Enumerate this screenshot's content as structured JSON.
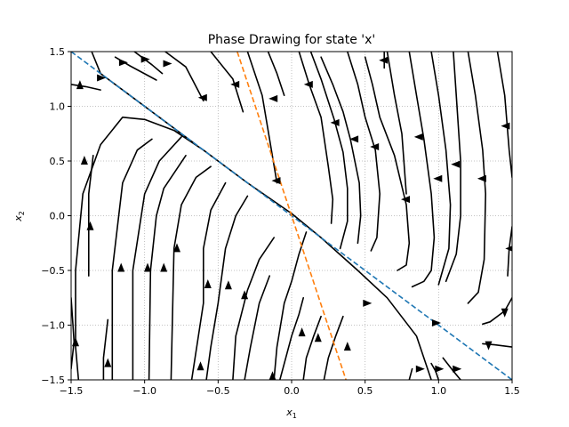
{
  "chart_data": {
    "type": "line",
    "title": "Phase Drawing for state 'x'",
    "xlabel": {
      "base": "x",
      "sub": "1"
    },
    "ylabel": {
      "base": "x",
      "sub": "2"
    },
    "xlim": [
      -1.5,
      1.5
    ],
    "ylim": [
      -1.5,
      1.5
    ],
    "grid": true,
    "xticks": [
      -1.5,
      -1.0,
      -0.5,
      0.0,
      0.5,
      1.0,
      1.5
    ],
    "yticks": [
      -1.5,
      -1.0,
      -0.5,
      0.0,
      0.5,
      1.0,
      1.5
    ],
    "xtick_labels": [
      "−1.5",
      "−1.0",
      "−0.5",
      "0.0",
      "0.5",
      "1.0",
      "1.5"
    ],
    "ytick_labels": [
      "−1.5",
      "−1.0",
      "−0.5",
      "0.0",
      "0.5",
      "1.0",
      "1.5"
    ],
    "colors": {
      "streamline": "#000000",
      "eigenline_1": "#1f77b4",
      "eigenline_2": "#ff7f0e",
      "grid": "#b0b0b0"
    },
    "eigenlines": [
      {
        "color": "#1f77b4",
        "style": "dashed",
        "points": [
          [
            -1.5,
            1.5
          ],
          [
            1.5,
            -1.5
          ]
        ]
      },
      {
        "color": "#ff7f0e",
        "style": "dashed",
        "points": [
          [
            -0.37,
            1.5
          ],
          [
            0.37,
            -1.5
          ]
        ]
      }
    ],
    "streamlines": [
      [
        [
          -1.5,
          1.2
        ],
        [
          -1.4,
          1.18
        ],
        [
          -1.3,
          1.15
        ]
      ],
      [
        [
          -1.36,
          1.5
        ],
        [
          -1.3,
          1.3
        ],
        [
          -1.1,
          1.1
        ],
        [
          -0.9,
          0.9
        ],
        [
          -0.65,
          0.65
        ]
      ],
      [
        [
          -1.2,
          1.45
        ],
        [
          -1.1,
          1.37
        ],
        [
          -0.92,
          1.24
        ]
      ],
      [
        [
          -1.07,
          1.5
        ],
        [
          -0.95,
          1.38
        ],
        [
          -0.88,
          1.3
        ]
      ],
      [
        [
          -0.86,
          1.5
        ],
        [
          -0.72,
          1.36
        ],
        [
          -0.6,
          1.05
        ]
      ],
      [
        [
          -0.55,
          1.5
        ],
        [
          -0.4,
          1.25
        ],
        [
          -0.33,
          0.95
        ]
      ],
      [
        [
          -0.3,
          1.5
        ],
        [
          -0.2,
          1.1
        ],
        [
          -0.15,
          0.7
        ],
        [
          -0.1,
          0.3
        ]
      ],
      [
        [
          -0.16,
          1.5
        ],
        [
          -0.1,
          1.3
        ],
        [
          -0.05,
          1.1
        ]
      ],
      [
        [
          0.05,
          1.5
        ],
        [
          0.12,
          1.2
        ],
        [
          0.2,
          0.9
        ],
        [
          0.25,
          0.45
        ],
        [
          0.28,
          0.15
        ],
        [
          0.27,
          -0.07
        ]
      ],
      [
        [
          0.13,
          1.5
        ],
        [
          0.2,
          1.25
        ],
        [
          0.29,
          0.88
        ],
        [
          0.35,
          0.58
        ],
        [
          0.38,
          0.25
        ],
        [
          0.38,
          -0.05
        ],
        [
          0.33,
          -0.3
        ]
      ],
      [
        [
          0.2,
          1.45
        ],
        [
          0.28,
          1.2
        ],
        [
          0.35,
          0.95
        ],
        [
          0.4,
          0.7
        ],
        [
          0.46,
          0.3
        ],
        [
          0.47,
          0.0
        ],
        [
          0.45,
          -0.25
        ]
      ],
      [
        [
          0.38,
          1.5
        ],
        [
          0.45,
          1.2
        ],
        [
          0.5,
          0.9
        ],
        [
          0.57,
          0.6
        ],
        [
          0.6,
          0.2
        ],
        [
          0.58,
          -0.2
        ],
        [
          0.54,
          -0.32
        ]
      ],
      [
        [
          0.63,
          1.5
        ],
        [
          0.63,
          1.35
        ]
      ],
      [
        [
          0.5,
          1.45
        ],
        [
          0.55,
          1.2
        ],
        [
          0.6,
          0.9
        ],
        [
          0.7,
          0.55
        ],
        [
          0.78,
          0.1
        ],
        [
          0.8,
          -0.25
        ],
        [
          0.78,
          -0.45
        ],
        [
          0.72,
          -0.5
        ]
      ],
      [
        [
          0.65,
          1.5
        ],
        [
          0.7,
          1.1
        ],
        [
          0.75,
          0.75
        ],
        [
          0.78,
          0.2
        ]
      ],
      [
        [
          0.8,
          1.5
        ],
        [
          0.85,
          1.1
        ],
        [
          0.9,
          0.7
        ],
        [
          0.95,
          0.2
        ],
        [
          0.97,
          -0.2
        ],
        [
          0.95,
          -0.5
        ],
        [
          0.9,
          -0.6
        ],
        [
          0.82,
          -0.65
        ]
      ],
      [
        [
          0.95,
          1.5
        ],
        [
          1.0,
          1.1
        ],
        [
          1.05,
          0.6
        ],
        [
          1.08,
          0.1
        ],
        [
          1.07,
          -0.3
        ],
        [
          1.0,
          -0.63
        ]
      ],
      [
        [
          1.1,
          1.5
        ],
        [
          1.12,
          1.1
        ],
        [
          1.15,
          0.5
        ],
        [
          1.15,
          0.0
        ],
        [
          1.12,
          -0.35
        ],
        [
          1.05,
          -0.6
        ]
      ],
      [
        [
          1.2,
          1.5
        ],
        [
          1.25,
          1.1
        ],
        [
          1.3,
          0.6
        ],
        [
          1.32,
          0.2
        ],
        [
          1.31,
          -0.4
        ],
        [
          1.27,
          -0.7
        ],
        [
          1.2,
          -0.8
        ]
      ],
      [
        [
          1.4,
          1.5
        ],
        [
          1.45,
          1.1
        ],
        [
          1.48,
          0.6
        ],
        [
          1.5,
          0.35
        ]
      ],
      [
        [
          1.5,
          -0.1
        ],
        [
          1.48,
          -0.3
        ],
        [
          1.47,
          -0.55
        ]
      ],
      [
        [
          1.5,
          -0.75
        ],
        [
          1.45,
          -0.87
        ],
        [
          1.35,
          -0.97
        ],
        [
          1.3,
          -0.99
        ]
      ],
      [
        [
          1.5,
          -1.2
        ],
        [
          1.38,
          -1.18
        ],
        [
          1.3,
          -1.17
        ]
      ],
      [
        [
          -1.45,
          -1.5
        ],
        [
          -1.47,
          -1.2
        ],
        [
          -1.47,
          -0.5
        ],
        [
          -1.42,
          0.2
        ],
        [
          -1.3,
          0.65
        ],
        [
          -1.15,
          0.9
        ],
        [
          -1.0,
          0.88
        ],
        [
          -0.8,
          0.78
        ],
        [
          -0.6,
          0.6
        ],
        [
          -0.3,
          0.3
        ],
        [
          0.0,
          0.02
        ],
        [
          0.2,
          -0.2
        ],
        [
          0.45,
          -0.5
        ],
        [
          0.65,
          -0.75
        ],
        [
          0.85,
          -1.1
        ],
        [
          0.95,
          -1.5
        ]
      ],
      [
        [
          -1.5,
          -0.75
        ],
        [
          -1.48,
          -1.15
        ],
        [
          -1.5,
          -1.4
        ]
      ],
      [
        [
          -1.38,
          -0.55
        ],
        [
          -1.38,
          0.2
        ],
        [
          -1.35,
          0.55
        ]
      ],
      [
        [
          -1.28,
          -1.5
        ],
        [
          -1.28,
          -1.3
        ],
        [
          -1.25,
          -0.95
        ]
      ],
      [
        [
          -1.22,
          -1.5
        ],
        [
          -1.22,
          -0.5
        ],
        [
          -1.15,
          0.3
        ],
        [
          -1.05,
          0.6
        ],
        [
          -0.95,
          0.7
        ]
      ],
      [
        [
          -1.08,
          -1.5
        ],
        [
          -1.08,
          -0.5
        ],
        [
          -1.0,
          0.2
        ],
        [
          -0.9,
          0.5
        ],
        [
          -0.75,
          0.72
        ]
      ],
      [
        [
          -0.97,
          -1.5
        ],
        [
          -0.96,
          -0.5
        ],
        [
          -0.92,
          0.0
        ],
        [
          -0.87,
          0.25
        ],
        [
          -0.72,
          0.55
        ]
      ],
      [
        [
          -0.82,
          -1.5
        ],
        [
          -0.8,
          -0.3
        ],
        [
          -0.75,
          0.1
        ],
        [
          -0.65,
          0.35
        ],
        [
          -0.55,
          0.45
        ]
      ],
      [
        [
          -0.68,
          -1.5
        ],
        [
          -0.6,
          -0.8
        ],
        [
          -0.6,
          -0.3
        ],
        [
          -0.55,
          0.05
        ],
        [
          -0.45,
          0.3
        ]
      ],
      [
        [
          -0.58,
          -1.5
        ],
        [
          -0.55,
          -1.2
        ],
        [
          -0.5,
          -0.8
        ],
        [
          -0.45,
          -0.3
        ],
        [
          -0.38,
          0.0
        ],
        [
          -0.3,
          0.18
        ]
      ],
      [
        [
          -0.4,
          -1.5
        ],
        [
          -0.38,
          -1.1
        ],
        [
          -0.3,
          -0.68
        ],
        [
          -0.22,
          -0.4
        ],
        [
          -0.12,
          -0.2
        ]
      ],
      [
        [
          -0.32,
          -1.5
        ],
        [
          -0.28,
          -1.2
        ],
        [
          -0.22,
          -0.8
        ],
        [
          -0.15,
          -0.55
        ]
      ],
      [
        [
          -0.12,
          -1.5
        ],
        [
          -0.1,
          -1.2
        ],
        [
          -0.05,
          -0.8
        ],
        [
          0.0,
          -0.6
        ],
        [
          0.05,
          -0.35
        ],
        [
          0.1,
          -0.15
        ]
      ],
      [
        [
          -0.08,
          -1.5
        ],
        [
          -0.04,
          -1.3
        ],
        [
          0.0,
          -1.1
        ],
        [
          0.05,
          -0.9
        ],
        [
          0.08,
          -0.75
        ]
      ],
      [
        [
          0.08,
          -1.5
        ],
        [
          0.1,
          -1.3
        ],
        [
          0.15,
          -1.1
        ],
        [
          0.2,
          -0.92
        ]
      ],
      [
        [
          0.22,
          -1.5
        ],
        [
          0.25,
          -1.3
        ],
        [
          0.3,
          -1.1
        ],
        [
          0.35,
          -0.92
        ]
      ],
      [
        [
          0.8,
          -1.5
        ],
        [
          0.82,
          -1.4
        ]
      ],
      [
        [
          1.0,
          -1.5
        ],
        [
          0.98,
          -1.42
        ],
        [
          0.95,
          -1.35
        ]
      ],
      [
        [
          1.15,
          -1.5
        ],
        [
          1.1,
          -1.42
        ],
        [
          1.03,
          -1.3
        ]
      ]
    ],
    "arrows": [
      [
        -1.44,
        1.19,
        1
      ],
      [
        -1.3,
        1.26,
        0
      ],
      [
        -1.15,
        1.4,
        0
      ],
      [
        -1.0,
        1.43,
        0
      ],
      [
        -0.85,
        1.39,
        0
      ],
      [
        -0.6,
        1.08,
        3
      ],
      [
        -0.38,
        1.2,
        3
      ],
      [
        -0.12,
        1.07,
        3
      ],
      [
        -0.1,
        0.32,
        3
      ],
      [
        0.12,
        1.2,
        3
      ],
      [
        0.3,
        0.85,
        3
      ],
      [
        0.43,
        0.7,
        3
      ],
      [
        0.57,
        0.63,
        3
      ],
      [
        0.63,
        1.42,
        3
      ],
      [
        0.78,
        0.15,
        3
      ],
      [
        0.87,
        0.72,
        3
      ],
      [
        1.0,
        0.34,
        3
      ],
      [
        1.12,
        0.47,
        3
      ],
      [
        1.3,
        0.34,
        3
      ],
      [
        1.46,
        0.82,
        3
      ],
      [
        1.49,
        -0.3,
        3
      ],
      [
        1.45,
        -0.88,
        2
      ],
      [
        1.34,
        -1.18,
        2
      ],
      [
        -1.47,
        -1.16,
        1
      ],
      [
        -1.41,
        0.5,
        1
      ],
      [
        -1.37,
        -0.1,
        1
      ],
      [
        -1.25,
        -1.35,
        1
      ],
      [
        -1.16,
        -0.48,
        1
      ],
      [
        -0.98,
        -0.48,
        1
      ],
      [
        -0.87,
        -0.48,
        1
      ],
      [
        -0.78,
        -0.3,
        1
      ],
      [
        -0.62,
        -1.38,
        1
      ],
      [
        -0.57,
        -0.63,
        1
      ],
      [
        -0.43,
        -0.64,
        1
      ],
      [
        -0.32,
        -0.73,
        1
      ],
      [
        -0.13,
        -1.47,
        1
      ],
      [
        0.07,
        -1.07,
        1
      ],
      [
        0.18,
        -1.12,
        1
      ],
      [
        0.38,
        -1.2,
        1
      ],
      [
        0.51,
        -0.8,
        0
      ],
      [
        0.87,
        -1.4,
        0
      ],
      [
        1.0,
        -1.4,
        0
      ],
      [
        1.12,
        -1.4,
        0
      ],
      [
        0.98,
        -0.98,
        0
      ]
    ]
  }
}
